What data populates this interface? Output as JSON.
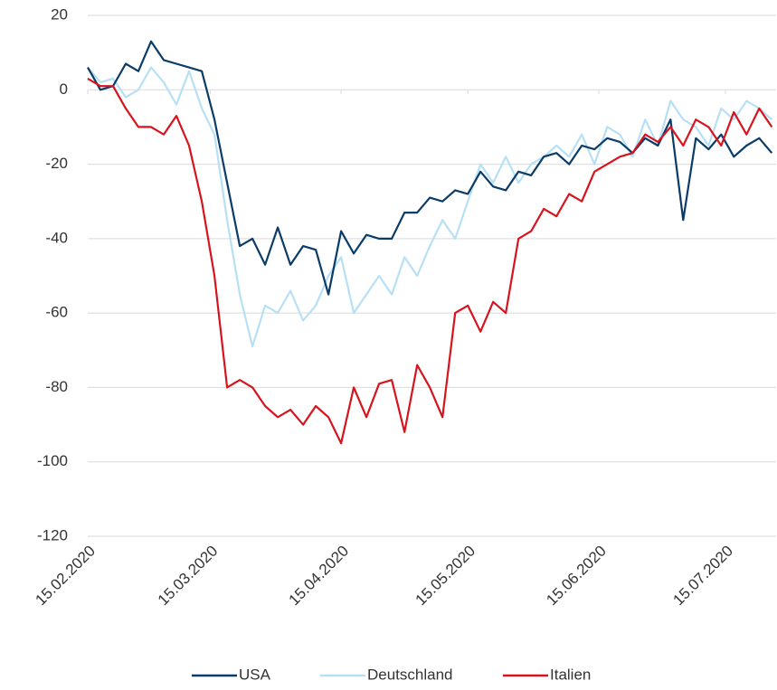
{
  "chart_data": {
    "type": "line",
    "x": [
      "15.02.2020",
      "18.02.2020",
      "21.02.2020",
      "24.02.2020",
      "27.02.2020",
      "01.03.2020",
      "04.03.2020",
      "07.03.2020",
      "10.03.2020",
      "13.03.2020",
      "16.03.2020",
      "19.03.2020",
      "22.03.2020",
      "25.03.2020",
      "28.03.2020",
      "31.03.2020",
      "03.04.2020",
      "06.04.2020",
      "09.04.2020",
      "12.04.2020",
      "15.04.2020",
      "18.04.2020",
      "21.04.2020",
      "24.04.2020",
      "27.04.2020",
      "30.04.2020",
      "03.05.2020",
      "06.05.2020",
      "09.05.2020",
      "12.05.2020",
      "15.05.2020",
      "18.05.2020",
      "21.05.2020",
      "24.05.2020",
      "27.05.2020",
      "30.05.2020",
      "02.06.2020",
      "05.06.2020",
      "08.06.2020",
      "11.06.2020",
      "14.06.2020",
      "17.06.2020",
      "20.06.2020",
      "23.06.2020",
      "26.06.2020",
      "29.06.2020",
      "02.07.2020",
      "05.07.2020",
      "08.07.2020",
      "11.07.2020",
      "14.07.2020",
      "17.07.2020",
      "20.07.2020",
      "23.07.2020",
      "26.07.2020"
    ],
    "series": [
      {
        "name": "USA",
        "color": "#0b3c68",
        "values": [
          6,
          0,
          1,
          7,
          5,
          13,
          8,
          7,
          6,
          5,
          -8,
          -25,
          -42,
          -40,
          -47,
          -37,
          -47,
          -42,
          -43,
          -55,
          -38,
          -44,
          -39,
          -40,
          -40,
          -33,
          -33,
          -29,
          -30,
          -27,
          -28,
          -22,
          -26,
          -27,
          -22,
          -23,
          -18,
          -17,
          -20,
          -15,
          -16,
          -13,
          -14,
          -17,
          -13,
          -15,
          -8,
          -35,
          -13,
          -16,
          -12,
          -18,
          -15,
          -13,
          -17
        ]
      },
      {
        "name": "Deutschland",
        "color": "#b7e0f5",
        "values": [
          6,
          2,
          3,
          -2,
          0,
          6,
          2,
          -4,
          5,
          -5,
          -12,
          -35,
          -55,
          -69,
          -58,
          -60,
          -54,
          -62,
          -58,
          -50,
          -45,
          -60,
          -55,
          -50,
          -55,
          -45,
          -50,
          -42,
          -35,
          -40,
          -30,
          -20,
          -25,
          -18,
          -25,
          -20,
          -18,
          -15,
          -18,
          -12,
          -20,
          -10,
          -12,
          -18,
          -8,
          -15,
          -3,
          -8,
          -10,
          -15,
          -5,
          -8,
          -3,
          -5,
          -8
        ]
      },
      {
        "name": "Italien",
        "color": "#d7141e",
        "values": [
          3,
          1,
          1,
          -5,
          -10,
          -10,
          -12,
          -7,
          -15,
          -30,
          -50,
          -80,
          -78,
          -80,
          -85,
          -88,
          -86,
          -90,
          -85,
          -88,
          -95,
          -80,
          -88,
          -79,
          -78,
          -92,
          -74,
          -80,
          -88,
          -60,
          -58,
          -65,
          -57,
          -60,
          -40,
          -38,
          -32,
          -34,
          -28,
          -30,
          -22,
          -20,
          -18,
          -17,
          -12,
          -14,
          -10,
          -15,
          -8,
          -10,
          -15,
          -6,
          -12,
          -5,
          -10
        ]
      }
    ],
    "xlim": [
      "15.02.2020",
      "27.07.2020"
    ],
    "xticks": [
      "15.02.2020",
      "15.03.2020",
      "15.04.2020",
      "15.05.2020",
      "15.06.2020",
      "15.07.2020"
    ],
    "ylim": [
      -120,
      20
    ],
    "yticks": [
      -120,
      -100,
      -80,
      -60,
      -40,
      -20,
      0,
      20
    ],
    "grid": true,
    "legend": "bottom"
  }
}
